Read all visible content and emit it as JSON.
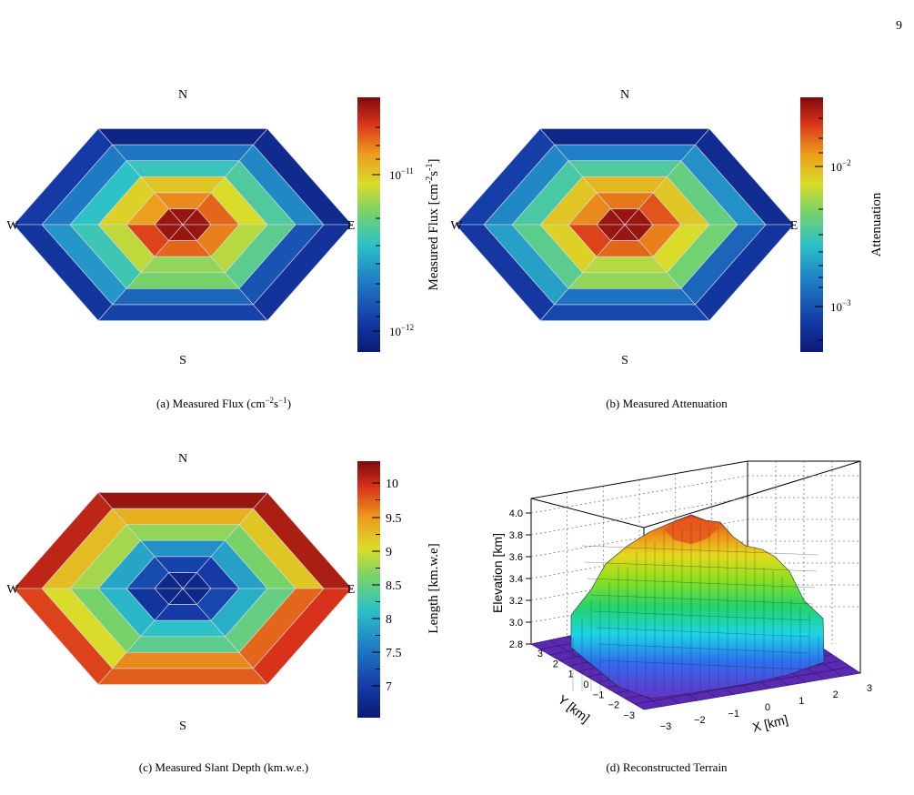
{
  "page_number": "9",
  "panels": [
    {
      "caption": "(a) Measured Flux (cm",
      "caption_sup1": "−2",
      "caption_mid": "s",
      "caption_sup2": "−1",
      "caption_end": ")",
      "dir_n": "N",
      "dir_s": "S",
      "dir_e": "E",
      "dir_w": "W",
      "cbar_title": "Measured Flux [cm",
      "cbar_title_sup1": "-2",
      "cbar_title_mid": "s",
      "cbar_title_sup2": "-1",
      "cbar_title_end": "]",
      "ticks": [
        {
          "base": "10",
          "exp": "−11"
        },
        {
          "base": "10",
          "exp": "−12"
        }
      ]
    },
    {
      "caption": "(b) Measured Attenuation",
      "dir_n": "N",
      "dir_s": "S",
      "dir_e": "E",
      "dir_w": "W",
      "cbar_title": "Attenuation",
      "ticks": [
        {
          "base": "10",
          "exp": "−2"
        },
        {
          "base": "10",
          "exp": "−3"
        }
      ]
    },
    {
      "caption": "(c) Measured Slant Depth (km.w.e.)",
      "dir_n": "N",
      "dir_s": "S",
      "dir_e": "E",
      "dir_w": "W",
      "cbar_title": "Length [km.w.e]",
      "ticks": [
        "10",
        "9.5",
        "9",
        "8.5",
        "8",
        "7.5",
        "7"
      ]
    },
    {
      "caption": "(d) Reconstructed Terrain",
      "z_label": "Elevation [km]",
      "y_label": "Y [km]",
      "x_label": "X [km]",
      "z_ticks": [
        "4.0",
        "3.8",
        "3.6",
        "3.4",
        "3.2",
        "3.0",
        "2.8"
      ],
      "y_ticks": [
        "3",
        "2",
        "1",
        "0",
        "−1",
        "−2",
        "−3"
      ],
      "x_ticks": [
        "−3",
        "−2",
        "−1",
        "0",
        "1",
        "2",
        "3"
      ]
    }
  ],
  "chart_data": [
    {
      "type": "heatmap",
      "layout": "hexagonal rings, 6 sectors",
      "scale": "log",
      "levels": [
        [
          0.97,
          0.97,
          0.97,
          0.97,
          0.97,
          0.97
        ],
        [
          0.84,
          0.8,
          0.77,
          0.88,
          0.84,
          0.81
        ],
        [
          0.66,
          0.7,
          0.68,
          0.63,
          0.58,
          0.62
        ],
        [
          0.48,
          0.44,
          0.42,
          0.45,
          0.55,
          0.5
        ],
        [
          0.3,
          0.26,
          0.27,
          0.33,
          0.22,
          0.18
        ],
        [
          0.06,
          0.04,
          0.12,
          0.1,
          0.14,
          0.09
        ]
      ]
    },
    {
      "type": "heatmap",
      "layout": "hexagonal rings, 6 sectors",
      "scale": "log",
      "levels": [
        [
          0.97,
          0.97,
          0.97,
          0.97,
          0.97,
          0.97
        ],
        [
          0.86,
          0.82,
          0.8,
          0.88,
          0.84,
          0.81
        ],
        [
          0.7,
          0.73,
          0.7,
          0.68,
          0.62,
          0.66
        ],
        [
          0.52,
          0.48,
          0.47,
          0.5,
          0.58,
          0.54
        ],
        [
          0.32,
          0.28,
          0.3,
          0.35,
          0.25,
          0.22
        ],
        [
          0.07,
          0.05,
          0.13,
          0.11,
          0.15,
          0.1
        ]
      ]
    },
    {
      "type": "heatmap",
      "layout": "hexagonal rings, 6 sectors",
      "scale": "linear",
      "levels": [
        [
          0.05,
          0.05,
          0.05,
          0.05,
          0.05,
          0.05
        ],
        [
          0.12,
          0.14,
          0.16,
          0.1,
          0.12,
          0.15
        ],
        [
          0.35,
          0.32,
          0.36,
          0.4,
          0.42,
          0.38
        ],
        [
          0.55,
          0.58,
          0.6,
          0.55,
          0.5,
          0.52
        ],
        [
          0.7,
          0.74,
          0.72,
          0.66,
          0.8,
          0.84
        ],
        [
          0.95,
          0.97,
          0.93,
          0.88,
          0.85,
          0.9
        ]
      ]
    },
    {
      "type": "surface",
      "xlabel": "X [km]",
      "ylabel": "Y [km]",
      "zlabel": "Elevation [km]",
      "xlim": [
        -3,
        3
      ],
      "ylim": [
        -3,
        3
      ],
      "zlim": [
        2.8,
        4.0
      ]
    }
  ]
}
